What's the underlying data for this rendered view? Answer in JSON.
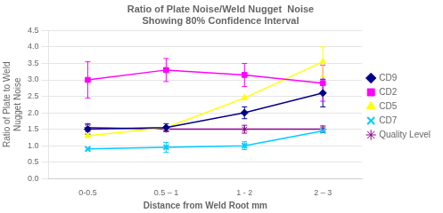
{
  "chart_data": {
    "type": "line",
    "title": "Ratio of Plate Noise/Weld Nugget  Noise",
    "subtitle": "Showing 80% Confidence Interval",
    "x_label": "Distance from Weld Root mm",
    "y_label": "Ratio of Plate to Weld\nNugget Noise",
    "categories": [
      "0-0.5",
      "0.5 – 1",
      "1 - 2",
      "2 – 3"
    ],
    "ylim": [
      0,
      4.5
    ],
    "yticks": [
      {
        "value": 0,
        "label": "0.0"
      },
      0.5,
      {
        "value": 1,
        "label": "1.0"
      },
      1.5,
      {
        "value": 2,
        "label": "2.0"
      },
      2.5,
      {
        "value": 3,
        "label": "3.0"
      },
      3.5,
      {
        "value": 4,
        "label": "4.0"
      },
      4.5
    ],
    "grid": "y",
    "legend": "right",
    "series": [
      {
        "name": "CD9",
        "color": "#00008B",
        "marker": "diamond",
        "line_style": "solid",
        "values": [
          1.5,
          1.55,
          2.0,
          2.6
        ],
        "yerr": [
          0.15,
          0.12,
          0.18,
          0.42
        ]
      },
      {
        "name": "CD2",
        "color": "#ff00ff",
        "marker": "square",
        "line_style": "solid",
        "values": [
          3.0,
          3.3,
          3.15,
          2.9
        ],
        "yerr": [
          0.55,
          0.35,
          0.35,
          0.55
        ]
      },
      {
        "name": "CD5",
        "color": "#ffff00",
        "marker": "triangle",
        "line_style": "solid",
        "values": [
          1.3,
          1.55,
          2.45,
          3.55
        ],
        "yerr": [
          0.0,
          0.0,
          0.0,
          0.45
        ]
      },
      {
        "name": "CD7",
        "color": "#00ccff",
        "marker": "x",
        "line_style": "solid",
        "values": [
          0.9,
          0.95,
          1.0,
          1.45
        ],
        "yerr": [
          0.0,
          0.15,
          0.12,
          0.0
        ]
      },
      {
        "name": "Quality Level",
        "color": "#8B008B",
        "marker": "star",
        "line_style": "solid",
        "values": [
          1.55,
          1.5,
          1.5,
          1.5
        ],
        "yerr": [
          0.12,
          0.05,
          0.12,
          0.1
        ]
      }
    ]
  }
}
